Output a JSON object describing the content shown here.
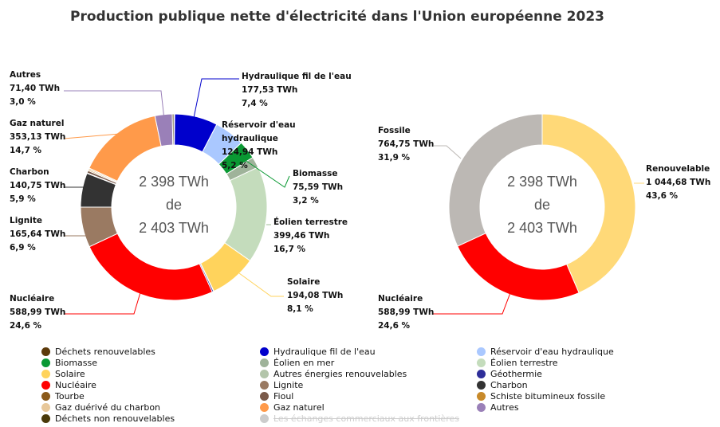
{
  "chart_data": [
    {
      "type": "pie",
      "variant": "donut",
      "title": "Production publique nette d'électricité dans l'Union européenne 2023",
      "center_text": [
        "2 398 TWh",
        "de",
        "2 403 TWh"
      ],
      "slices": [
        {
          "name": "Déchets renouvelables",
          "value": 3.5,
          "color": "#5c3a0a"
        },
        {
          "name": "Hydraulique fil de l'eau",
          "value": 177.53,
          "value_label": "177,53 TWh",
          "pct_label": "7,4 %",
          "color": "#0000cc"
        },
        {
          "name": "Réservoir d'eau hydraulique",
          "value": 124.94,
          "value_label": "124,94 TWh",
          "pct_label": "5,2 %",
          "color": "#aac8ff"
        },
        {
          "name": "Biomasse",
          "value": 75.59,
          "value_label": "75,59 TWh",
          "pct_label": "3,2 %",
          "color": "#0a9933"
        },
        {
          "name": "Éolien en mer",
          "value": 45.0,
          "color": "#9fb39a"
        },
        {
          "name": "Éolien terrestre",
          "value": 399.46,
          "value_label": "399,46 TWh",
          "pct_label": "16,7 %",
          "color": "#c4dcbc"
        },
        {
          "name": "Solaire",
          "value": 194.08,
          "value_label": "194,08 TWh",
          "pct_label": "8,1 %",
          "color": "#ffd35c"
        },
        {
          "name": "Autres énergies renouvelables",
          "value": 1.5,
          "color": "#b3c5aa"
        },
        {
          "name": "Géothermie",
          "value": 6.0,
          "color": "#2e2e99"
        },
        {
          "name": "Nucléaire",
          "value": 588.99,
          "value_label": "588,99 TWh",
          "pct_label": "24,6 %",
          "color": "#ff0000"
        },
        {
          "name": "Lignite",
          "value": 165.64,
          "value_label": "165,64 TWh",
          "pct_label": "6,9 %",
          "color": "#9a7a62"
        },
        {
          "name": "Charbon",
          "value": 140.75,
          "value_label": "140,75 TWh",
          "pct_label": "5,9 %",
          "color": "#333333"
        },
        {
          "name": "Tourbe",
          "value": 2.0,
          "color": "#8a5a1a"
        },
        {
          "name": "Fioul",
          "value": 10.0,
          "color": "#7a5a4a"
        },
        {
          "name": "Schiste bitumineux fossile",
          "value": 5.0,
          "color": "#c88a2a"
        },
        {
          "name": "Gaz duérivé du charbon",
          "value": 6.0,
          "color": "#e8c89a"
        },
        {
          "name": "Gaz naturel",
          "value": 353.13,
          "value_label": "353,13 TWh",
          "pct_label": "14,7 %",
          "color": "#ff9a4a"
        },
        {
          "name": "Autres",
          "value": 71.4,
          "value_label": "71,40 TWh",
          "pct_label": "3,0 %",
          "color": "#9a80b8"
        },
        {
          "name": "Déchets non renouvelables",
          "value": 6.0,
          "color": "#4a3a0a"
        }
      ]
    },
    {
      "type": "pie",
      "variant": "donut",
      "center_text": [
        "2 398 TWh",
        "de",
        "2 403 TWh"
      ],
      "slices": [
        {
          "name": "Renouvelable",
          "value": 1044.68,
          "value_label": "1 044,68 TWh",
          "pct_label": "43,6 %",
          "color": "#ffd978"
        },
        {
          "name": "Nucléaire",
          "value": 588.99,
          "value_label": "588,99 TWh",
          "pct_label": "24,6 %",
          "color": "#ff0000"
        },
        {
          "name": "Fossile",
          "value": 764.75,
          "value_label": "764,75 TWh",
          "pct_label": "31,9 %",
          "color": "#bcb8b4"
        }
      ]
    }
  ],
  "legend": {
    "items": [
      {
        "name": "Déchets renouvelables",
        "color": "#5c3a0a"
      },
      {
        "name": "Hydraulique fil de l'eau",
        "color": "#0000cc"
      },
      {
        "name": "Réservoir d'eau hydraulique",
        "color": "#aac8ff"
      },
      {
        "name": "Biomasse",
        "color": "#0a9933"
      },
      {
        "name": "Éolien en mer",
        "color": "#9fb39a"
      },
      {
        "name": "Éolien terrestre",
        "color": "#c4dcbc"
      },
      {
        "name": "Solaire",
        "color": "#ffd35c"
      },
      {
        "name": "Autres énergies renouvelables",
        "color": "#b3c5aa"
      },
      {
        "name": "Géothermie",
        "color": "#2e2e99"
      },
      {
        "name": "Nucléaire",
        "color": "#ff0000"
      },
      {
        "name": "Lignite",
        "color": "#9a7a62"
      },
      {
        "name": "Charbon",
        "color": "#333333"
      },
      {
        "name": "Tourbe",
        "color": "#8a5a1a"
      },
      {
        "name": "Fioul",
        "color": "#7a5a4a"
      },
      {
        "name": "Schiste bitumineux fossile",
        "color": "#c88a2a"
      },
      {
        "name": "Gaz duérivé du charbon",
        "color": "#e8c89a"
      },
      {
        "name": "Gaz naturel",
        "color": "#ff9a4a"
      },
      {
        "name": "Autres",
        "color": "#9a80b8"
      },
      {
        "name": "Déchets non renouvelables",
        "color": "#4a3a0a"
      },
      {
        "name": "Les échanges commerciaux aux frontières",
        "color": "#cccccc",
        "hidden": true
      }
    ]
  }
}
